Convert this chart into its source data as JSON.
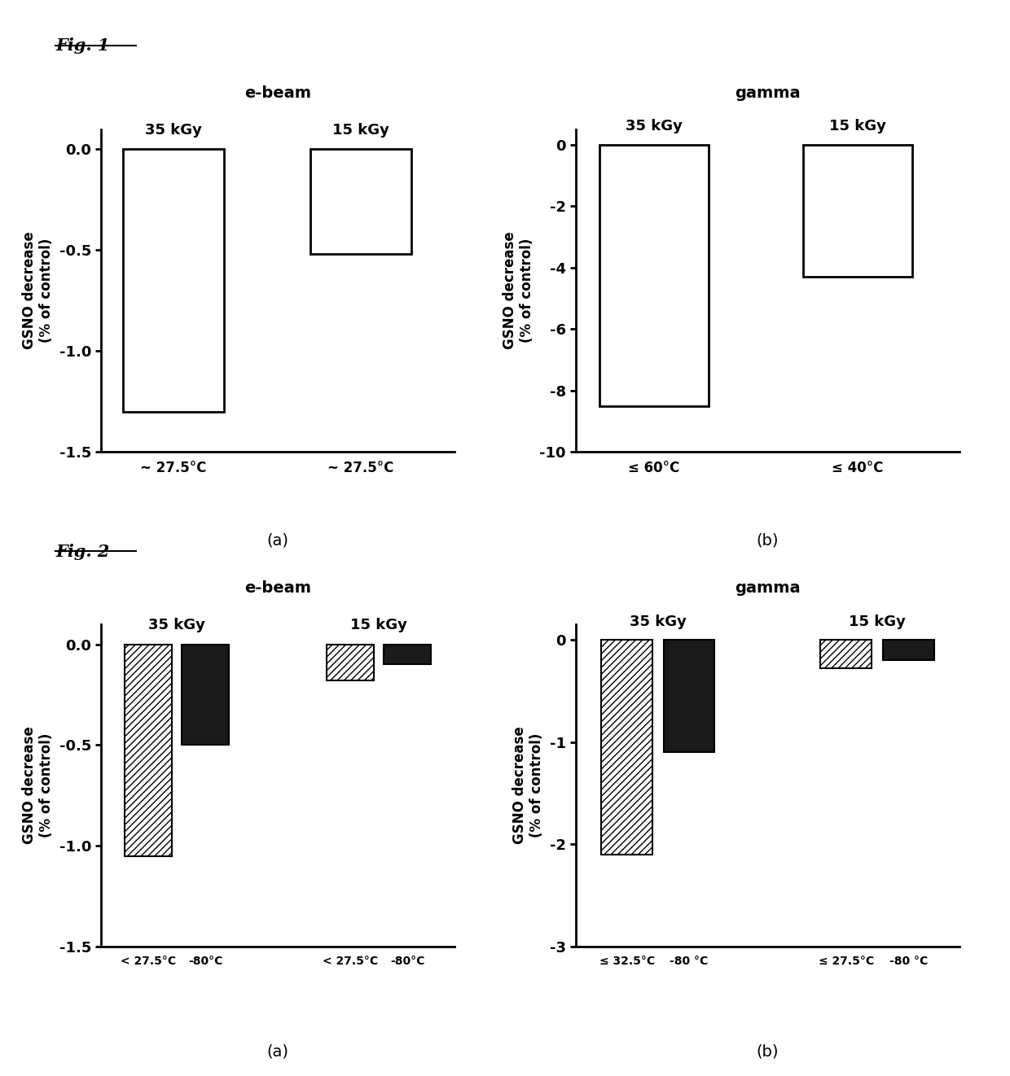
{
  "fig1a": {
    "title": "e-beam",
    "subtitle_35": "35 kGy",
    "subtitle_15": "15 kGy",
    "values": [
      -1.3,
      -0.52
    ],
    "xlabel_labels": [
      "~ 27.5°C",
      "~ 27.5°C"
    ],
    "ylabel": "GSNO decrease\n(% of control)",
    "ylim": [
      -1.5,
      0.1
    ],
    "yticks": [
      0.0,
      -0.5,
      -1.0,
      -1.5
    ],
    "ytick_labels": [
      "0.0",
      "-0.5",
      "-1.0",
      "-1.5"
    ]
  },
  "fig1b": {
    "title": "gamma",
    "subtitle_35": "35 kGy",
    "subtitle_15": "15 kGy",
    "values": [
      -8.5,
      -4.3
    ],
    "xlabel_labels": [
      "≤ 60°C",
      "≤ 40°C"
    ],
    "ylabel": "GSNO decrease\n(% of control)",
    "ylim": [
      -10,
      0.5
    ],
    "yticks": [
      0,
      -2,
      -4,
      -6,
      -8,
      -10
    ],
    "ytick_labels": [
      "0",
      "-2",
      "-4",
      "-6",
      "-8",
      "-10"
    ]
  },
  "fig2a": {
    "title": "e-beam",
    "subtitle_35": "35 kGy",
    "subtitle_15": "15 kGy",
    "values_hatched": [
      -1.05,
      -0.18
    ],
    "values_solid": [
      -0.5,
      -0.1
    ],
    "xlabel_labels_hatched": [
      "< 27.5°C",
      "< 27.5°C"
    ],
    "xlabel_labels_solid": [
      "-80°C",
      "-80°C"
    ],
    "ylabel": "GSNO decrease\n(% of control)",
    "ylim": [
      -1.5,
      0.1
    ],
    "yticks": [
      0.0,
      -0.5,
      -1.0,
      -1.5
    ],
    "ytick_labels": [
      "0.0",
      "-0.5",
      "-1.0",
      "-1.5"
    ]
  },
  "fig2b": {
    "title": "gamma",
    "subtitle_35": "35 kGy",
    "subtitle_15": "15 kGy",
    "values_hatched": [
      -2.1,
      -0.28
    ],
    "values_solid": [
      -1.1,
      -0.2
    ],
    "xlabel_labels_hatched": [
      "≤ 32.5°C",
      "≤ 27.5°C"
    ],
    "xlabel_labels_solid": [
      "-80 °C",
      "-80 °C"
    ],
    "ylabel": "GSNO decrease\n(% of control)",
    "ylim": [
      -3,
      0.15
    ],
    "yticks": [
      0,
      -1,
      -2,
      -3
    ],
    "ytick_labels": [
      "0",
      "-1",
      "-2",
      "-3"
    ]
  },
  "background_color": "#ffffff",
  "bar_color_white": "#ffffff",
  "bar_color_black": "#1a1a1a",
  "bar_edgecolor": "#000000",
  "fig1_label": "Fig. 1",
  "fig2_label": "Fig. 2"
}
